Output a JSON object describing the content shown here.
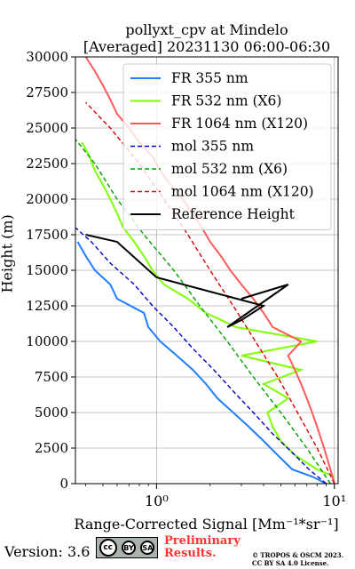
{
  "title_line1": "pollyxt_cpv at Mindelo",
  "title_line2": "[Averaged] 20231130 06:00-06:30",
  "footer": {
    "version": "Version: 3.6",
    "license_badge": [
      "cc",
      "BY",
      "SA"
    ],
    "preliminary": "Preliminary\nResults.",
    "copyright": "© TROPOS & OSCM 2023.\nCC BY SA 4.0 License."
  },
  "colors": {
    "fr355": "#1f7fff",
    "fr532": "#7fff00",
    "fr1064": "#ff5a5a",
    "mol355": "#0000cc",
    "mol532": "#00a000",
    "mol1064": "#dd0000",
    "ref": "#000000",
    "preliminary": "#ff3333"
  },
  "chart_data": {
    "type": "line",
    "xlabel": "Range-Corrected Signal [Mm⁻¹*sr⁻¹]",
    "ylabel": "Height (m)",
    "xscale": "log",
    "xlim": [
      0.35,
      10.5
    ],
    "ylim": [
      0,
      30000
    ],
    "x_ticks": [
      {
        "value": 1,
        "label": "10⁰"
      },
      {
        "value": 10,
        "label": "10¹"
      }
    ],
    "y_ticks": [
      0,
      2500,
      5000,
      7500,
      10000,
      12500,
      15000,
      17500,
      20000,
      22500,
      25000,
      27500,
      30000
    ],
    "grid": true,
    "legend_position": "top-right",
    "legend": [
      "FR 355 nm",
      "FR 532 nm (X6)",
      "FR 1064 nm (X120)",
      "mol 355 nm",
      "mol 532 nm (X6)",
      "mol 1064 nm (X120)",
      "Reference Height"
    ],
    "series": [
      {
        "name": "FR 355 nm",
        "style": "solid",
        "color_key": "fr355",
        "points": [
          [
            9.0,
            0
          ],
          [
            7.5,
            500
          ],
          [
            5.8,
            1000
          ],
          [
            4.8,
            2000
          ],
          [
            4.0,
            3000
          ],
          [
            3.3,
            4000
          ],
          [
            2.7,
            5000
          ],
          [
            2.2,
            6000
          ],
          [
            1.9,
            7000
          ],
          [
            1.6,
            8000
          ],
          [
            1.3,
            9000
          ],
          [
            1.05,
            10000
          ],
          [
            0.9,
            11000
          ],
          [
            0.85,
            12000
          ],
          [
            0.6,
            13000
          ],
          [
            0.55,
            14000
          ],
          [
            0.45,
            15000
          ],
          [
            0.4,
            16000
          ],
          [
            0.36,
            17000
          ]
        ]
      },
      {
        "name": "FR 532 nm (X6)",
        "style": "solid",
        "color_key": "fr532",
        "points": [
          [
            10.0,
            500
          ],
          [
            8.0,
            1000
          ],
          [
            6.0,
            2000
          ],
          [
            5.0,
            3000
          ],
          [
            4.5,
            4000
          ],
          [
            4.2,
            5000
          ],
          [
            5.5,
            6000
          ],
          [
            4.0,
            7000
          ],
          [
            6.5,
            8000
          ],
          [
            3.0,
            9000
          ],
          [
            8.0,
            10000
          ],
          [
            2.8,
            11000
          ],
          [
            1.9,
            12000
          ],
          [
            1.5,
            13000
          ],
          [
            1.1,
            14000
          ],
          [
            0.95,
            15000
          ],
          [
            0.85,
            16000
          ],
          [
            0.75,
            17000
          ],
          [
            0.65,
            18000
          ],
          [
            0.6,
            19000
          ],
          [
            0.55,
            20000
          ],
          [
            0.5,
            21000
          ],
          [
            0.45,
            22000
          ],
          [
            0.42,
            23000
          ],
          [
            0.38,
            24000
          ]
        ]
      },
      {
        "name": "FR 1064 nm (X120)",
        "style": "solid",
        "color_key": "fr1064",
        "points": [
          [
            10.0,
            0
          ],
          [
            9.5,
            1000
          ],
          [
            9.0,
            2000
          ],
          [
            8.5,
            3000
          ],
          [
            8.0,
            4000
          ],
          [
            7.5,
            5000
          ],
          [
            7.0,
            6000
          ],
          [
            6.5,
            7000
          ],
          [
            6.0,
            8000
          ],
          [
            5.5,
            9000
          ],
          [
            6.5,
            10000
          ],
          [
            4.5,
            11000
          ],
          [
            4.0,
            12000
          ],
          [
            3.5,
            13000
          ],
          [
            3.0,
            14000
          ],
          [
            2.6,
            15000
          ],
          [
            2.3,
            16000
          ],
          [
            2.0,
            17000
          ],
          [
            1.8,
            18000
          ],
          [
            1.6,
            19000
          ],
          [
            1.4,
            20000
          ],
          [
            1.2,
            21000
          ],
          [
            1.05,
            22000
          ],
          [
            0.95,
            23000
          ],
          [
            0.8,
            24000
          ],
          [
            0.7,
            25000
          ],
          [
            0.6,
            26000
          ],
          [
            0.55,
            27000
          ],
          [
            0.5,
            28000
          ],
          [
            0.45,
            29000
          ],
          [
            0.4,
            30000
          ]
        ]
      },
      {
        "name": "mol 355 nm",
        "style": "dashed",
        "color_key": "mol355",
        "points": [
          [
            9.0,
            0
          ],
          [
            7.2,
            1000
          ],
          [
            6.0,
            2000
          ],
          [
            4.5,
            3500
          ],
          [
            3.5,
            5000
          ],
          [
            2.7,
            6500
          ],
          [
            2.1,
            8000
          ],
          [
            1.6,
            9500
          ],
          [
            1.25,
            11000
          ],
          [
            0.95,
            12500
          ],
          [
            0.75,
            14000
          ],
          [
            0.55,
            15500
          ],
          [
            0.43,
            17000
          ],
          [
            0.35,
            18000
          ]
        ]
      },
      {
        "name": "mol 532 nm (X6)",
        "style": "dashed",
        "color_key": "mol532",
        "points": [
          [
            9.5,
            0
          ],
          [
            7.0,
            2500
          ],
          [
            5.0,
            5000
          ],
          [
            3.5,
            7500
          ],
          [
            2.5,
            10000
          ],
          [
            1.75,
            12500
          ],
          [
            1.25,
            15000
          ],
          [
            0.85,
            17500
          ],
          [
            0.6,
            20000
          ],
          [
            0.45,
            22500
          ],
          [
            0.35,
            24200
          ]
        ]
      },
      {
        "name": "mol 1064 nm (X120)",
        "style": "dashed",
        "color_key": "mol1064",
        "points": [
          [
            10.0,
            0
          ],
          [
            8.0,
            2500
          ],
          [
            6.2,
            5000
          ],
          [
            4.8,
            7500
          ],
          [
            3.6,
            10000
          ],
          [
            2.7,
            12500
          ],
          [
            2.0,
            15000
          ],
          [
            1.5,
            17500
          ],
          [
            1.1,
            20000
          ],
          [
            0.8,
            22500
          ],
          [
            0.55,
            25000
          ],
          [
            0.4,
            26800
          ]
        ]
      },
      {
        "name": "Reference Height",
        "style": "solid",
        "color_key": "ref",
        "points": [
          [
            0.4,
            17500
          ],
          [
            0.6,
            17000
          ],
          [
            1.0,
            14500
          ],
          [
            2.0,
            13500
          ],
          [
            4.0,
            12500
          ],
          [
            3.0,
            11500
          ],
          [
            2.5,
            11000
          ],
          [
            5.5,
            14000
          ],
          [
            3.0,
            13000
          ]
        ]
      }
    ]
  }
}
